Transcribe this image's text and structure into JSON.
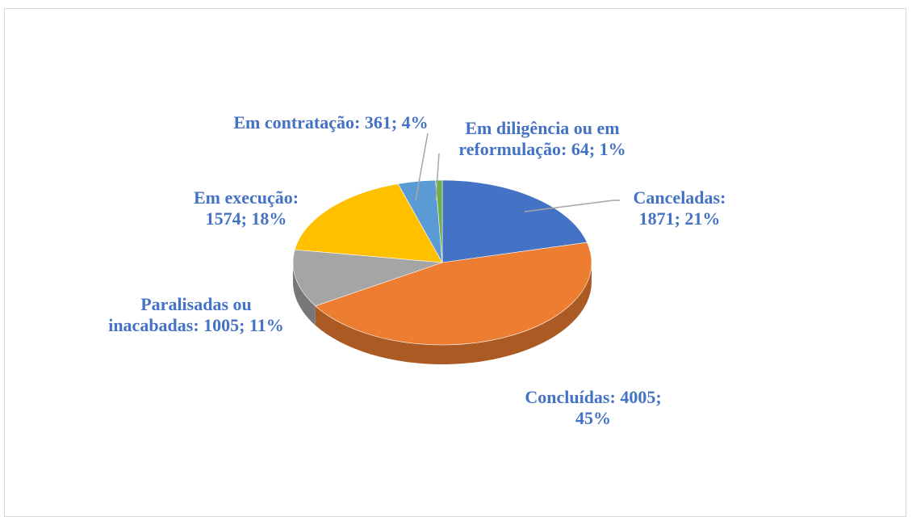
{
  "chart_data": {
    "type": "pie",
    "values": [
      1871,
      4005,
      1005,
      1574,
      361,
      64
    ],
    "value_labels": [
      "Canceladas: 1871; 21%",
      "Concluídas: 4005; 45%",
      "Paralisadas ou inacabadas: 1005; 11%",
      "Em execução: 1574; 18%",
      "Em contratação: 361; 4%",
      "Em diligência ou em reformulação: 64; 1%"
    ],
    "colors": [
      "#4472c4",
      "#ed7d31",
      "#a5a5a5",
      "#ffc000",
      "#5b9bd5",
      "#70ad47"
    ],
    "label_color": "#4472c4"
  }
}
